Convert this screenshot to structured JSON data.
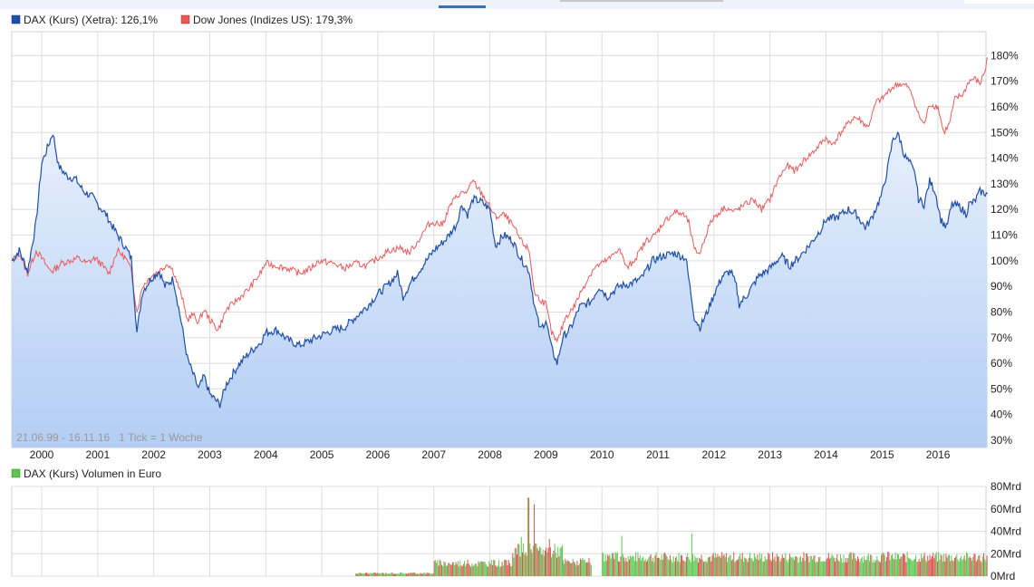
{
  "legend": {
    "dax_label": "DAX (Kurs) (Xetra): 126,1%",
    "dow_label": "Dow Jones (Indizes US): 179,3%",
    "volume_label": "DAX (Kurs) Volumen in Euro"
  },
  "date_range": "21.06.99 - 16.11.16",
  "tick_info": "1 Tick = 1 Woche",
  "colors": {
    "dax": "#1f4fa8",
    "dow": "#e8595b",
    "fill_top": "#e6effc",
    "fill_bottom": "#b3cdf4",
    "grid": "#dcdcdc",
    "vol_up": "#5ec64f",
    "vol_down": "#d9534f"
  },
  "chart_data": [
    {
      "type": "line",
      "title": "",
      "x_labels": [
        "2000",
        "2001",
        "2002",
        "2003",
        "2004",
        "2005",
        "2006",
        "2007",
        "2008",
        "2009",
        "2010",
        "2011",
        "2012",
        "2013",
        "2014",
        "2015",
        "2016"
      ],
      "y_ticks": [
        "30%",
        "40%",
        "50%",
        "60%",
        "70%",
        "80%",
        "90%",
        "100%",
        "110%",
        "120%",
        "130%",
        "140%",
        "150%",
        "160%",
        "170%",
        "180%"
      ],
      "ylim": [
        28,
        183
      ],
      "xlim": [
        1999.47,
        2016.88
      ],
      "grid": true,
      "legend_position": "top-left",
      "series": [
        {
          "name": "DAX (Kurs) (Xetra)",
          "points": [
            [
              1999.47,
              100
            ],
            [
              1999.6,
              104
            ],
            [
              1999.75,
              96
            ],
            [
              1999.9,
              115
            ],
            [
              2000.0,
              138
            ],
            [
              2000.12,
              145
            ],
            [
              2000.2,
              150
            ],
            [
              2000.3,
              137
            ],
            [
              2000.45,
              133
            ],
            [
              2000.6,
              132
            ],
            [
              2000.75,
              127
            ],
            [
              2000.9,
              125
            ],
            [
              2001.0,
              122
            ],
            [
              2001.15,
              118
            ],
            [
              2001.3,
              112
            ],
            [
              2001.5,
              105
            ],
            [
              2001.6,
              101
            ],
            [
              2001.7,
              72
            ],
            [
              2001.8,
              88
            ],
            [
              2001.95,
              93
            ],
            [
              2002.1,
              96
            ],
            [
              2002.2,
              90
            ],
            [
              2002.35,
              93
            ],
            [
              2002.5,
              75
            ],
            [
              2002.6,
              62
            ],
            [
              2002.7,
              56
            ],
            [
              2002.8,
              50
            ],
            [
              2002.9,
              55
            ],
            [
              2003.0,
              48
            ],
            [
              2003.18,
              44
            ],
            [
              2003.3,
              52
            ],
            [
              2003.5,
              59
            ],
            [
              2003.7,
              64
            ],
            [
              2003.9,
              68
            ],
            [
              2004.0,
              72
            ],
            [
              2004.2,
              73
            ],
            [
              2004.4,
              69
            ],
            [
              2004.6,
              67
            ],
            [
              2004.8,
              69
            ],
            [
              2005.0,
              71
            ],
            [
              2005.2,
              73
            ],
            [
              2005.4,
              74
            ],
            [
              2005.6,
              78
            ],
            [
              2005.8,
              82
            ],
            [
              2006.0,
              87
            ],
            [
              2006.2,
              91
            ],
            [
              2006.35,
              95
            ],
            [
              2006.45,
              86
            ],
            [
              2006.6,
              92
            ],
            [
              2006.8,
              98
            ],
            [
              2007.0,
              104
            ],
            [
              2007.2,
              108
            ],
            [
              2007.4,
              114
            ],
            [
              2007.5,
              122
            ],
            [
              2007.6,
              118
            ],
            [
              2007.7,
              124
            ],
            [
              2007.85,
              123
            ],
            [
              2008.0,
              120
            ],
            [
              2008.1,
              106
            ],
            [
              2008.25,
              110
            ],
            [
              2008.4,
              108
            ],
            [
              2008.55,
              101
            ],
            [
              2008.7,
              96
            ],
            [
              2008.8,
              82
            ],
            [
              2008.9,
              73
            ],
            [
              2009.0,
              77
            ],
            [
              2009.1,
              66
            ],
            [
              2009.2,
              60
            ],
            [
              2009.3,
              70
            ],
            [
              2009.45,
              74
            ],
            [
              2009.6,
              82
            ],
            [
              2009.8,
              84
            ],
            [
              2009.95,
              90
            ],
            [
              2010.1,
              86
            ],
            [
              2010.3,
              90
            ],
            [
              2010.5,
              91
            ],
            [
              2010.7,
              93
            ],
            [
              2010.9,
              100
            ],
            [
              2011.1,
              102
            ],
            [
              2011.3,
              103
            ],
            [
              2011.5,
              101
            ],
            [
              2011.55,
              93
            ],
            [
              2011.65,
              78
            ],
            [
              2011.75,
              74
            ],
            [
              2011.9,
              81
            ],
            [
              2012.0,
              87
            ],
            [
              2012.15,
              94
            ],
            [
              2012.3,
              96
            ],
            [
              2012.4,
              90
            ],
            [
              2012.45,
              83
            ],
            [
              2012.6,
              87
            ],
            [
              2012.8,
              94
            ],
            [
              2013.0,
              97
            ],
            [
              2013.2,
              102
            ],
            [
              2013.35,
              98
            ],
            [
              2013.5,
              101
            ],
            [
              2013.7,
              106
            ],
            [
              2013.9,
              112
            ],
            [
              2014.0,
              116
            ],
            [
              2014.2,
              117
            ],
            [
              2014.4,
              120
            ],
            [
              2014.55,
              118
            ],
            [
              2014.7,
              113
            ],
            [
              2014.8,
              116
            ],
            [
              2014.9,
              121
            ],
            [
              2015.0,
              126
            ],
            [
              2015.1,
              136
            ],
            [
              2015.2,
              148
            ],
            [
              2015.3,
              149
            ],
            [
              2015.4,
              141
            ],
            [
              2015.5,
              138
            ],
            [
              2015.6,
              133
            ],
            [
              2015.65,
              124
            ],
            [
              2015.75,
              122
            ],
            [
              2015.85,
              131
            ],
            [
              2015.95,
              127
            ],
            [
              2016.05,
              116
            ],
            [
              2016.15,
              113
            ],
            [
              2016.25,
              122
            ],
            [
              2016.4,
              121
            ],
            [
              2016.5,
              118
            ],
            [
              2016.55,
              122
            ],
            [
              2016.65,
              123
            ],
            [
              2016.75,
              127
            ],
            [
              2016.88,
              126.1
            ]
          ]
        },
        {
          "name": "Dow Jones (Indizes US)",
          "points": [
            [
              1999.47,
              100
            ],
            [
              1999.6,
              103
            ],
            [
              1999.75,
              95
            ],
            [
              1999.9,
              104
            ],
            [
              2000.0,
              101
            ],
            [
              2000.12,
              97
            ],
            [
              2000.2,
              96
            ],
            [
              2000.35,
              99
            ],
            [
              2000.5,
              100
            ],
            [
              2000.65,
              101
            ],
            [
              2000.8,
              99
            ],
            [
              2000.95,
              101
            ],
            [
              2001.05,
              99
            ],
            [
              2001.2,
              95
            ],
            [
              2001.35,
              104
            ],
            [
              2001.5,
              101
            ],
            [
              2001.6,
              96
            ],
            [
              2001.7,
              80
            ],
            [
              2001.8,
              90
            ],
            [
              2001.95,
              94
            ],
            [
              2002.1,
              96
            ],
            [
              2002.25,
              99
            ],
            [
              2002.35,
              96
            ],
            [
              2002.5,
              86
            ],
            [
              2002.6,
              77
            ],
            [
              2002.7,
              79
            ],
            [
              2002.8,
              76
            ],
            [
              2002.9,
              81
            ],
            [
              2003.0,
              77
            ],
            [
              2003.15,
              73
            ],
            [
              2003.3,
              81
            ],
            [
              2003.5,
              85
            ],
            [
              2003.7,
              89
            ],
            [
              2003.9,
              95
            ],
            [
              2004.0,
              99
            ],
            [
              2004.2,
              98
            ],
            [
              2004.4,
              97
            ],
            [
              2004.6,
              95
            ],
            [
              2004.8,
              97
            ],
            [
              2004.95,
              100
            ],
            [
              2005.2,
              99
            ],
            [
              2005.4,
              97
            ],
            [
              2005.6,
              99
            ],
            [
              2005.8,
              98
            ],
            [
              2006.0,
              101
            ],
            [
              2006.2,
              104
            ],
            [
              2006.4,
              105
            ],
            [
              2006.55,
              103
            ],
            [
              2006.7,
              107
            ],
            [
              2006.9,
              114
            ],
            [
              2007.0,
              115
            ],
            [
              2007.15,
              114
            ],
            [
              2007.3,
              122
            ],
            [
              2007.45,
              126
            ],
            [
              2007.6,
              127
            ],
            [
              2007.7,
              131
            ],
            [
              2007.8,
              128
            ],
            [
              2007.95,
              123
            ],
            [
              2008.1,
              117
            ],
            [
              2008.25,
              118
            ],
            [
              2008.4,
              114
            ],
            [
              2008.55,
              108
            ],
            [
              2008.7,
              104
            ],
            [
              2008.8,
              87
            ],
            [
              2008.9,
              85
            ],
            [
              2009.0,
              83
            ],
            [
              2009.1,
              72
            ],
            [
              2009.2,
              68
            ],
            [
              2009.35,
              78
            ],
            [
              2009.5,
              82
            ],
            [
              2009.65,
              89
            ],
            [
              2009.85,
              97
            ],
            [
              2010.0,
              99
            ],
            [
              2010.15,
              101
            ],
            [
              2010.3,
              105
            ],
            [
              2010.45,
              97
            ],
            [
              2010.6,
              101
            ],
            [
              2010.8,
              108
            ],
            [
              2010.95,
              110
            ],
            [
              2011.1,
              115
            ],
            [
              2011.3,
              119
            ],
            [
              2011.45,
              118
            ],
            [
              2011.55,
              115
            ],
            [
              2011.65,
              104
            ],
            [
              2011.75,
              103
            ],
            [
              2011.9,
              113
            ],
            [
              2012.0,
              117
            ],
            [
              2012.2,
              121
            ],
            [
              2012.35,
              119
            ],
            [
              2012.5,
              121
            ],
            [
              2012.7,
              124
            ],
            [
              2012.85,
              120
            ],
            [
              2013.0,
              124
            ],
            [
              2013.15,
              132
            ],
            [
              2013.3,
              137
            ],
            [
              2013.45,
              135
            ],
            [
              2013.6,
              139
            ],
            [
              2013.8,
              143
            ],
            [
              2014.0,
              148
            ],
            [
              2014.1,
              145
            ],
            [
              2014.3,
              151
            ],
            [
              2014.5,
              156
            ],
            [
              2014.6,
              155
            ],
            [
              2014.75,
              152
            ],
            [
              2014.9,
              162
            ],
            [
              2015.0,
              163
            ],
            [
              2015.15,
              167
            ],
            [
              2015.3,
              169
            ],
            [
              2015.45,
              168
            ],
            [
              2015.55,
              164
            ],
            [
              2015.65,
              157
            ],
            [
              2015.75,
              153
            ],
            [
              2015.85,
              161
            ],
            [
              2016.0,
              160
            ],
            [
              2016.1,
              150
            ],
            [
              2016.2,
              153
            ],
            [
              2016.3,
              163
            ],
            [
              2016.45,
              165
            ],
            [
              2016.55,
              170
            ],
            [
              2016.65,
              171
            ],
            [
              2016.75,
              169
            ],
            [
              2016.85,
              175
            ],
            [
              2016.88,
              179.3
            ]
          ]
        }
      ]
    },
    {
      "type": "bar",
      "title": "",
      "y_ticks": [
        "0Mrd",
        "20Mrd",
        "40Mrd",
        "60Mrd",
        "80Mrd"
      ],
      "ylim": [
        0,
        80
      ],
      "grid": true,
      "series_name": "DAX (Kurs) Volumen in Euro",
      "segments": [
        {
          "from": 2005.6,
          "to": 2007.0,
          "value": 2.5
        },
        {
          "from": 2007.0,
          "to": 2008.4,
          "value": 11
        },
        {
          "from": 2008.4,
          "to": 2009.3,
          "value": 22
        },
        {
          "from": 2009.3,
          "to": 2009.8,
          "value": 12
        },
        {
          "from": 2009.8,
          "to": 2010.0,
          "value": 0
        },
        {
          "from": 2010.0,
          "to": 2016.88,
          "value": 16
        }
      ],
      "peaks": [
        [
          2008.55,
          35
        ],
        [
          2008.68,
          70
        ],
        [
          2008.78,
          64
        ],
        [
          2009.05,
          33
        ],
        [
          2010.35,
          36
        ],
        [
          2011.6,
          38
        ],
        [
          2015.1,
          22
        ],
        [
          2016.88,
          26
        ]
      ]
    }
  ]
}
